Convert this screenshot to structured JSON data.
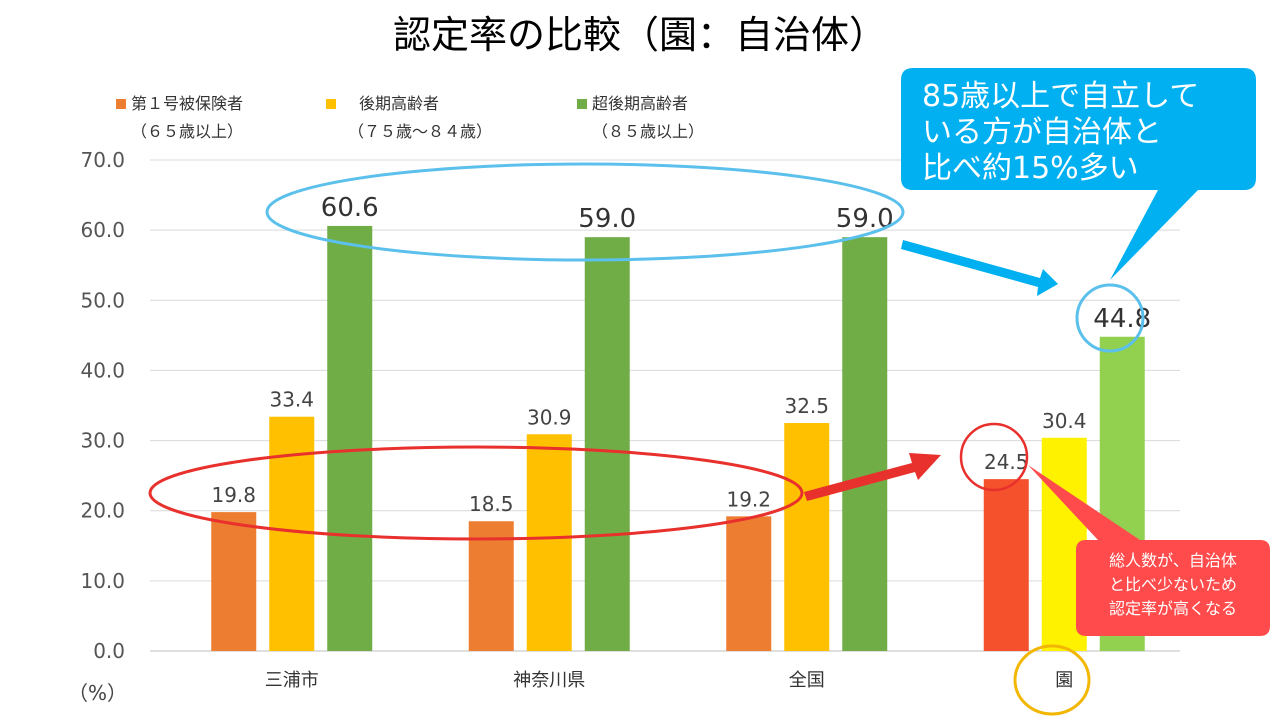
{
  "chart_data": {
    "type": "bar",
    "title": "認定率の比較（園：自治体）",
    "categories": [
      "三浦市",
      "神奈川県",
      "全国",
      "園"
    ],
    "series": [
      {
        "name": "第１号被保険者",
        "sub": "（６５歳以上）",
        "color": "#ED7D31",
        "values": [
          19.8,
          18.5,
          19.2,
          24.5
        ]
      },
      {
        "name": "後期高齢者",
        "sub": "（７５歳～８４歳）",
        "color": "#FFC000",
        "values": [
          33.4,
          30.9,
          32.5,
          30.4
        ]
      },
      {
        "name": "超後期高齢者",
        "sub": "（８５歳以上）",
        "color": "#70AD47",
        "values": [
          60.6,
          59.0,
          59.0,
          44.8
        ]
      }
    ],
    "highlight_colors": [
      "#F4512C",
      "#FFF200",
      "#92D050"
    ],
    "ylim": [
      0,
      70
    ],
    "yticks": [
      "0.0",
      "10.0",
      "20.0",
      "30.0",
      "40.0",
      "50.0",
      "60.0",
      "70.0"
    ],
    "y_unit": "（%）",
    "grid": true,
    "legend_position": "top-left"
  },
  "annotations": {
    "callout_top": [
      "85歳以上で自立して",
      "いる方が自治体と",
      "比べ約15%多い"
    ],
    "callout_bottom": [
      "総人数が、自治体",
      "と比べ少ないため",
      "認定率が高くなる"
    ]
  },
  "colors": {
    "callout_blue": "#00B0F0",
    "callout_red": "#FF4B4B",
    "ellipse_blue": "#5BC0EB",
    "ellipse_red": "#E8302C",
    "circle_gold": "#F2B705",
    "grid": "#D9D9D9"
  }
}
